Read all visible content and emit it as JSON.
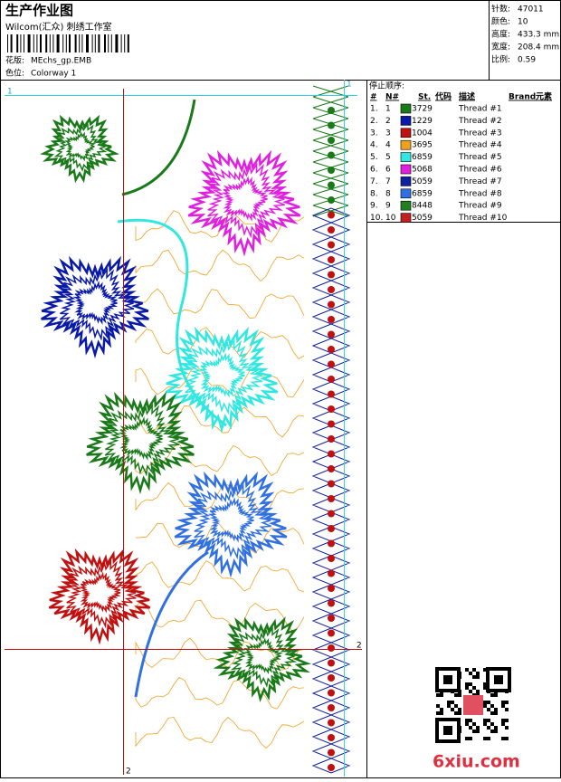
{
  "header": {
    "title": "生产作业图",
    "company": "Wilcom(汇众) 刺绣工作室",
    "design_label": "花版:",
    "design_value": "MEchs_gp.EMB",
    "colorway_label": "色位:",
    "colorway_value": "Colorway 1"
  },
  "stats": [
    [
      "针数:",
      "47011"
    ],
    [
      "颜色:",
      "10"
    ],
    [
      "高度:",
      "433.3 mm"
    ],
    [
      "宽度:",
      "208.4 mm"
    ],
    [
      "比例:",
      "0.59"
    ]
  ],
  "stop_sequence": {
    "label": "停止顺序:",
    "columns": [
      "#",
      "N#",
      "St.",
      "代码",
      "描述",
      "Brand",
      "元素"
    ],
    "rows": [
      {
        "index": "1.",
        "needle": "1",
        "color": "#1a7a1a",
        "code": "3729",
        "description": "Thread #1"
      },
      {
        "index": "2.",
        "needle": "2",
        "color": "#0a1aa8",
        "code": "1229",
        "description": "Thread #2"
      },
      {
        "index": "3.",
        "needle": "3",
        "color": "#c01010",
        "code": "1004",
        "description": "Thread #3"
      },
      {
        "index": "4.",
        "needle": "4",
        "color": "#f0a020",
        "code": "3695",
        "description": "Thread #4"
      },
      {
        "index": "5.",
        "needle": "5",
        "color": "#30e8e0",
        "code": "6859",
        "description": "Thread #5"
      },
      {
        "index": "6.",
        "needle": "6",
        "color": "#e020e0",
        "code": "5068",
        "description": "Thread #6"
      },
      {
        "index": "7.",
        "needle": "7",
        "color": "#1020a0",
        "code": "5059",
        "description": "Thread #7"
      },
      {
        "index": "8.",
        "needle": "8",
        "color": "#3070e0",
        "code": "6859",
        "description": "Thread #8"
      },
      {
        "index": "9.",
        "needle": "9",
        "color": "#208020",
        "code": "8448",
        "description": "Thread #9"
      },
      {
        "index": "10.",
        "needle": "10",
        "color": "#c02020",
        "code": "5059",
        "description": "Thread #10"
      }
    ]
  },
  "guides": {
    "top_left": "1",
    "top_right": "1",
    "right": "2",
    "bottom": "2"
  },
  "watermark": "6xiu.com"
}
